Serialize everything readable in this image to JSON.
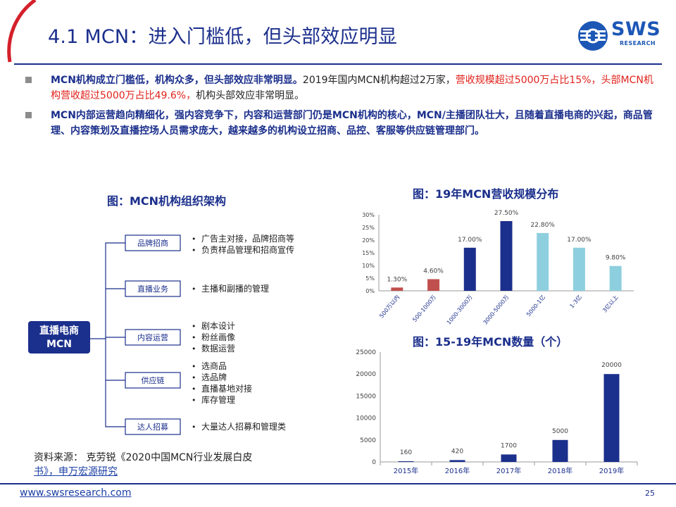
{
  "header": {
    "title": "4.1 MCN：进入门槛低，但头部效应明显",
    "logo_text": "SWS",
    "logo_sub": "RESEARCH"
  },
  "bullets": [
    {
      "strong": "MCN机构成立门槛低，机构众多，但头部效应非常明显。",
      "normal1": "2019年国内MCN机构超过2万家，",
      "red": "营收规模超过5000万占比15%，头部MCN机构营收超过5000万占比49.6%，",
      "normal2": "机构头部效应非常明显。"
    },
    {
      "strong": "MCN内部运营趋向精细化，强内容竞争下，内容和运营部门仍是MCN机构的核心，MCN/主播团队壮大，且随着直播电商的兴起，商品管理、内容策划及直播控场人员需求庞大，越来越多的机构设立招商、品控、客服等供应链管理部门。"
    }
  ],
  "org_chart": {
    "title": "图：MCN机构组织架构",
    "root_line1": "直播电商",
    "root_line2": "MCN",
    "departments": [
      {
        "label": "品牌招商",
        "duties": [
          "广告主对接，品牌招商等",
          "负责样品管理和招商宣传"
        ]
      },
      {
        "label": "直播业务",
        "duties": [
          "主播和副播的管理"
        ]
      },
      {
        "label": "内容运营",
        "duties": [
          "剧本设计",
          "粉丝画像",
          "数据运营"
        ]
      },
      {
        "label": "供应链",
        "duties": [
          "选商品",
          "选品牌",
          "直播基地对接",
          "库存管理"
        ]
      },
      {
        "label": "达人招募",
        "duties": [
          "大量达人招募和管理类"
        ]
      }
    ]
  },
  "chart_data": [
    {
      "type": "bar",
      "title": "图：19年MCN营收规模分布",
      "categories": [
        "500万以内",
        "500-1000万",
        "1000-3000万",
        "3000-5000万",
        "5000-1亿",
        "1-3亿",
        "3亿以上"
      ],
      "values": [
        1.3,
        4.6,
        17.0,
        27.5,
        22.8,
        17.0,
        9.8
      ],
      "value_labels": [
        "1.30%",
        "4.60%",
        "17.00%",
        "27.50%",
        "22.80%",
        "17.00%",
        "9.80%"
      ],
      "bar_colors": [
        "#c0504d",
        "#c0504d",
        "#1b2f8c",
        "#1b2f8c",
        "#8ecfdf",
        "#8ecfdf",
        "#8ecfdf"
      ],
      "yticks": [
        "0%",
        "5%",
        "10%",
        "15%",
        "20%",
        "25%",
        "30%"
      ],
      "ylim": [
        0,
        30
      ],
      "xlabel": "",
      "ylabel": "",
      "grid": false
    },
    {
      "type": "bar",
      "title": "图：15-19年MCN数量（个）",
      "categories": [
        "2015年",
        "2016年",
        "2017年",
        "2018年",
        "2019年"
      ],
      "values": [
        160,
        420,
        1700,
        5000,
        20000
      ],
      "value_labels": [
        "160",
        "420",
        "1700",
        "5000",
        "20000"
      ],
      "bar_color": "#1b2f8c",
      "yticks": [
        "0",
        "5000",
        "10000",
        "15000",
        "20000",
        "25000"
      ],
      "ylim": [
        0,
        25000
      ],
      "xlabel": "",
      "ylabel": "",
      "grid": false
    }
  ],
  "source": {
    "prefix": "资料来源：  克劳锐《2020中国MCN行业发展白皮",
    "link": "书》，申万宏源研究"
  },
  "footer": {
    "url": "www.swsresearch.com",
    "page": "25"
  },
  "colors": {
    "brand_navy": "#1b2f8c",
    "accent_red": "#e0221b",
    "logo_blue": "#1c57b6"
  }
}
